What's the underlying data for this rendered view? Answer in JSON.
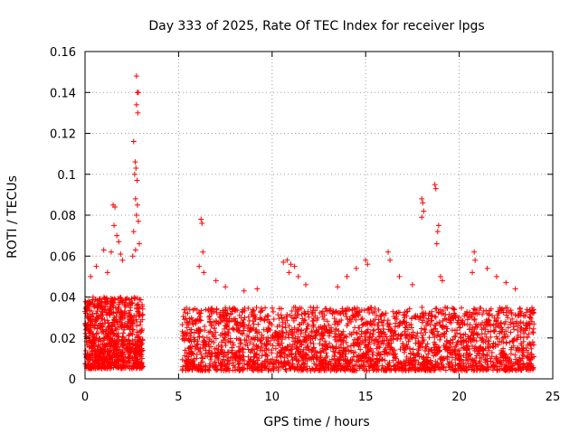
{
  "chart_data": {
    "type": "scatter",
    "title": "Day 333 of 2025, Rate Of TEC Index for receiver lpgs",
    "xlabel": "GPS time / hours",
    "ylabel": "ROTI / TECUs",
    "xlim": [
      0,
      25
    ],
    "ylim": [
      0,
      0.16
    ],
    "x_ticks": [
      "0",
      "5",
      "10",
      "15",
      "20",
      "25"
    ],
    "y_ticks": [
      "0",
      "0.02",
      "0.04",
      "0.06",
      "0.08",
      "0.1",
      "0.12",
      "0.14",
      "0.16"
    ],
    "grid": true,
    "marker": "plus",
    "color": "#ff0000",
    "series": [
      {
        "segments": [
          {
            "x_start": 0.0,
            "x_end": 3.1,
            "y_min": 0.005,
            "y_max": 0.04,
            "n": 900
          },
          {
            "x_start": 5.2,
            "x_end": 24.0,
            "y_min": 0.004,
            "y_max": 0.035,
            "n": 2600
          }
        ],
        "peaks": [
          {
            "x": 2.75,
            "y": 0.148
          },
          {
            "x": 2.8,
            "y": 0.14
          },
          {
            "x": 2.85,
            "y": 0.14
          },
          {
            "x": 2.75,
            "y": 0.134
          },
          {
            "x": 2.82,
            "y": 0.13
          },
          {
            "x": 2.6,
            "y": 0.116
          },
          {
            "x": 2.68,
            "y": 0.106
          },
          {
            "x": 2.72,
            "y": 0.103
          },
          {
            "x": 2.65,
            "y": 0.1
          },
          {
            "x": 2.78,
            "y": 0.097
          },
          {
            "x": 2.7,
            "y": 0.088
          },
          {
            "x": 2.8,
            "y": 0.085
          },
          {
            "x": 2.75,
            "y": 0.08
          },
          {
            "x": 2.85,
            "y": 0.077
          },
          {
            "x": 2.6,
            "y": 0.072
          },
          {
            "x": 2.9,
            "y": 0.066
          },
          {
            "x": 2.7,
            "y": 0.063
          },
          {
            "x": 2.55,
            "y": 0.06
          },
          {
            "x": 1.5,
            "y": 0.085
          },
          {
            "x": 1.6,
            "y": 0.084
          },
          {
            "x": 1.55,
            "y": 0.075
          },
          {
            "x": 1.7,
            "y": 0.07
          },
          {
            "x": 1.8,
            "y": 0.067
          },
          {
            "x": 1.4,
            "y": 0.062
          },
          {
            "x": 1.0,
            "y": 0.063
          },
          {
            "x": 1.9,
            "y": 0.061
          },
          {
            "x": 2.0,
            "y": 0.058
          },
          {
            "x": 0.3,
            "y": 0.05
          },
          {
            "x": 0.6,
            "y": 0.055
          },
          {
            "x": 1.2,
            "y": 0.052
          },
          {
            "x": 6.2,
            "y": 0.078
          },
          {
            "x": 6.25,
            "y": 0.076
          },
          {
            "x": 6.3,
            "y": 0.062
          },
          {
            "x": 6.1,
            "y": 0.055
          },
          {
            "x": 6.35,
            "y": 0.052
          },
          {
            "x": 7.0,
            "y": 0.048
          },
          {
            "x": 7.5,
            "y": 0.045
          },
          {
            "x": 8.5,
            "y": 0.043
          },
          {
            "x": 9.2,
            "y": 0.044
          },
          {
            "x": 10.6,
            "y": 0.057
          },
          {
            "x": 10.8,
            "y": 0.058
          },
          {
            "x": 11.0,
            "y": 0.056
          },
          {
            "x": 11.2,
            "y": 0.055
          },
          {
            "x": 10.9,
            "y": 0.052
          },
          {
            "x": 11.4,
            "y": 0.05
          },
          {
            "x": 11.8,
            "y": 0.046
          },
          {
            "x": 13.5,
            "y": 0.045
          },
          {
            "x": 14.0,
            "y": 0.05
          },
          {
            "x": 14.5,
            "y": 0.054
          },
          {
            "x": 15.0,
            "y": 0.058
          },
          {
            "x": 15.1,
            "y": 0.056
          },
          {
            "x": 16.2,
            "y": 0.062
          },
          {
            "x": 16.3,
            "y": 0.058
          },
          {
            "x": 16.8,
            "y": 0.05
          },
          {
            "x": 17.5,
            "y": 0.046
          },
          {
            "x": 18.0,
            "y": 0.088
          },
          {
            "x": 18.05,
            "y": 0.086
          },
          {
            "x": 18.1,
            "y": 0.082
          },
          {
            "x": 18.0,
            "y": 0.079
          },
          {
            "x": 18.7,
            "y": 0.095
          },
          {
            "x": 18.75,
            "y": 0.093
          },
          {
            "x": 18.9,
            "y": 0.075
          },
          {
            "x": 18.85,
            "y": 0.072
          },
          {
            "x": 18.8,
            "y": 0.066
          },
          {
            "x": 19.0,
            "y": 0.05
          },
          {
            "x": 19.1,
            "y": 0.048
          },
          {
            "x": 20.8,
            "y": 0.062
          },
          {
            "x": 20.85,
            "y": 0.058
          },
          {
            "x": 20.7,
            "y": 0.052
          },
          {
            "x": 21.5,
            "y": 0.054
          },
          {
            "x": 22.0,
            "y": 0.05
          },
          {
            "x": 22.5,
            "y": 0.047
          },
          {
            "x": 23.0,
            "y": 0.044
          },
          {
            "x": 23.8,
            "y": 0.033
          }
        ]
      }
    ]
  }
}
